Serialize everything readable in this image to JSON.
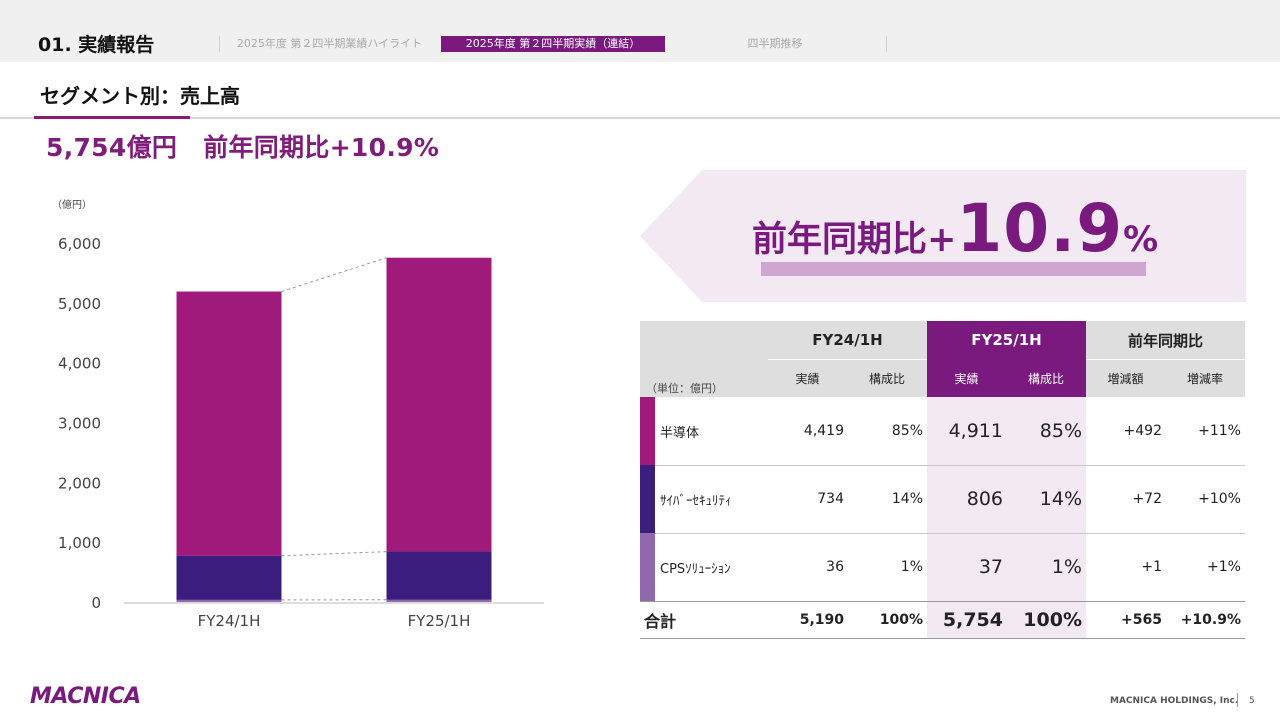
{
  "header": {
    "section_title": "01. 実績報告",
    "tabs": [
      {
        "label": "2025年度 第２四半期業績ハイライト",
        "active": false
      },
      {
        "label": "2025年度 第２四半期実績（連結）",
        "active": true
      },
      {
        "label": "四半期推移",
        "active": false
      }
    ]
  },
  "page_title": "セグメント別：売上高",
  "headline": {
    "amount": "5,754億円",
    "yoy": "前年同期比+10.9%"
  },
  "callout": {
    "prefix": "前年同期比+",
    "number": "10.9",
    "suffix": "%"
  },
  "colors": {
    "semiconductor": "#a01a7c",
    "cybersecurity": "#3a1d7c",
    "cps": "#8f68ad",
    "accent": "#7a1a7f"
  },
  "chart_data": {
    "type": "bar",
    "stacked": true,
    "unit_label": "（億円）",
    "categories": [
      "FY24/1H",
      "FY25/1H"
    ],
    "series": [
      {
        "name": "CPSｿﾘｭｰｼｮﾝ",
        "values": [
          36,
          37
        ]
      },
      {
        "name": "ｻｲﾊﾞｰｾｷｭﾘﾃｨ",
        "values": [
          734,
          806
        ]
      },
      {
        "name": "半導体",
        "values": [
          4419,
          4911
        ]
      }
    ],
    "ylim": [
      0,
      6000
    ],
    "yticks": [
      "0",
      "1,000",
      "2,000",
      "3,000",
      "4,000",
      "5,000",
      "6,000"
    ],
    "legend": "none",
    "grid": false
  },
  "table": {
    "unit_label": "（単位：億円）",
    "groups": [
      "FY24/1H",
      "FY25/1H",
      "前年同期比"
    ],
    "subheaders": [
      "実績",
      "構成比",
      "実績",
      "構成比",
      "増減額",
      "増減率"
    ],
    "rows": [
      {
        "label": "半導体",
        "values": [
          "4,419",
          "85%",
          "4,911",
          "85%",
          "+492",
          "+11%"
        ]
      },
      {
        "label": "ｻｲﾊﾞｰｾｷｭﾘﾃｨ",
        "values": [
          "734",
          "14%",
          "806",
          "14%",
          "+72",
          "+10%"
        ]
      },
      {
        "label": "CPSｿﾘｭｰｼｮﾝ",
        "values": [
          "36",
          "1%",
          "37",
          "1%",
          "+1",
          "+1%"
        ]
      }
    ],
    "total": {
      "label": "合計",
      "values": [
        "5,190",
        "100%",
        "5,754",
        "100%",
        "+565",
        "+10.9%"
      ]
    }
  },
  "footer": {
    "logo": "MACNICA",
    "company": "MACNICA HOLDINGS, Inc.",
    "page": "5"
  }
}
